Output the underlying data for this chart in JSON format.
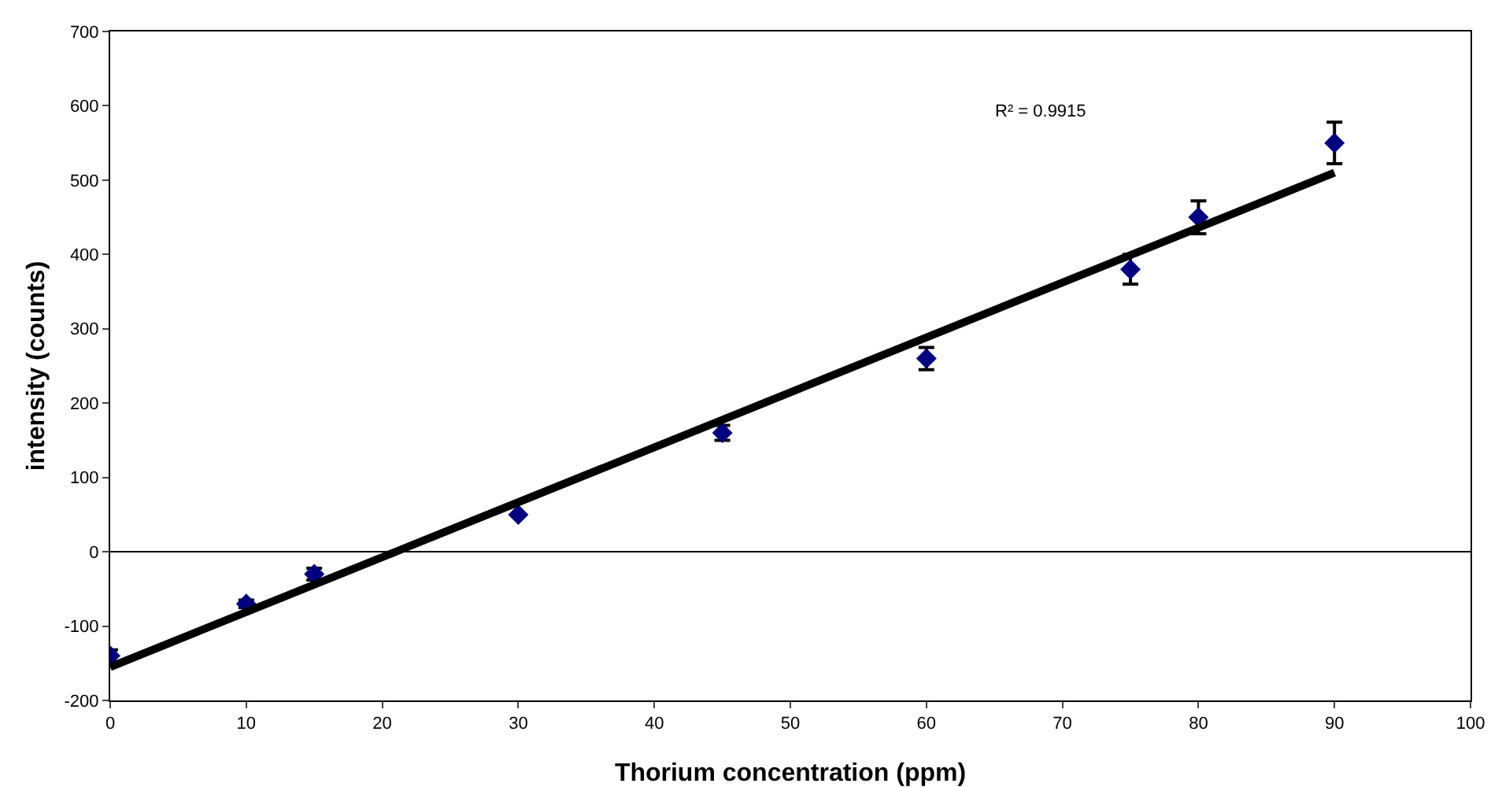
{
  "chart_data": {
    "type": "scatter",
    "xlabel": "Thorium concentration (ppm)",
    "ylabel": "intensity (counts)",
    "xlim": [
      0,
      100
    ],
    "xticks": [
      0,
      10,
      20,
      30,
      40,
      50,
      60,
      70,
      80,
      90,
      100
    ],
    "ylim": [
      -200,
      700
    ],
    "yticks": [
      -200,
      -100,
      0,
      100,
      200,
      300,
      400,
      500,
      600,
      700
    ],
    "grid": false,
    "marker": "diamond",
    "series": [
      {
        "color": "#000080",
        "x": [
          0,
          10,
          15,
          30,
          45,
          60,
          75,
          80,
          90
        ],
        "values": [
          -140,
          -70,
          -30,
          50,
          160,
          260,
          380,
          450,
          550
        ],
        "errors": [
          8,
          5,
          8,
          null,
          10,
          15,
          20,
          22,
          28
        ]
      },
      {
        "type": "line",
        "color": "#000000",
        "x": [
          0,
          90
        ],
        "values": [
          -155,
          510
        ],
        "marker": "none",
        "line_style": "solid"
      }
    ],
    "ref_lines": [
      {
        "axis": "y",
        "value": 0,
        "color": "#000000"
      }
    ],
    "annotations": [
      "R² = 0.9915"
    ]
  }
}
